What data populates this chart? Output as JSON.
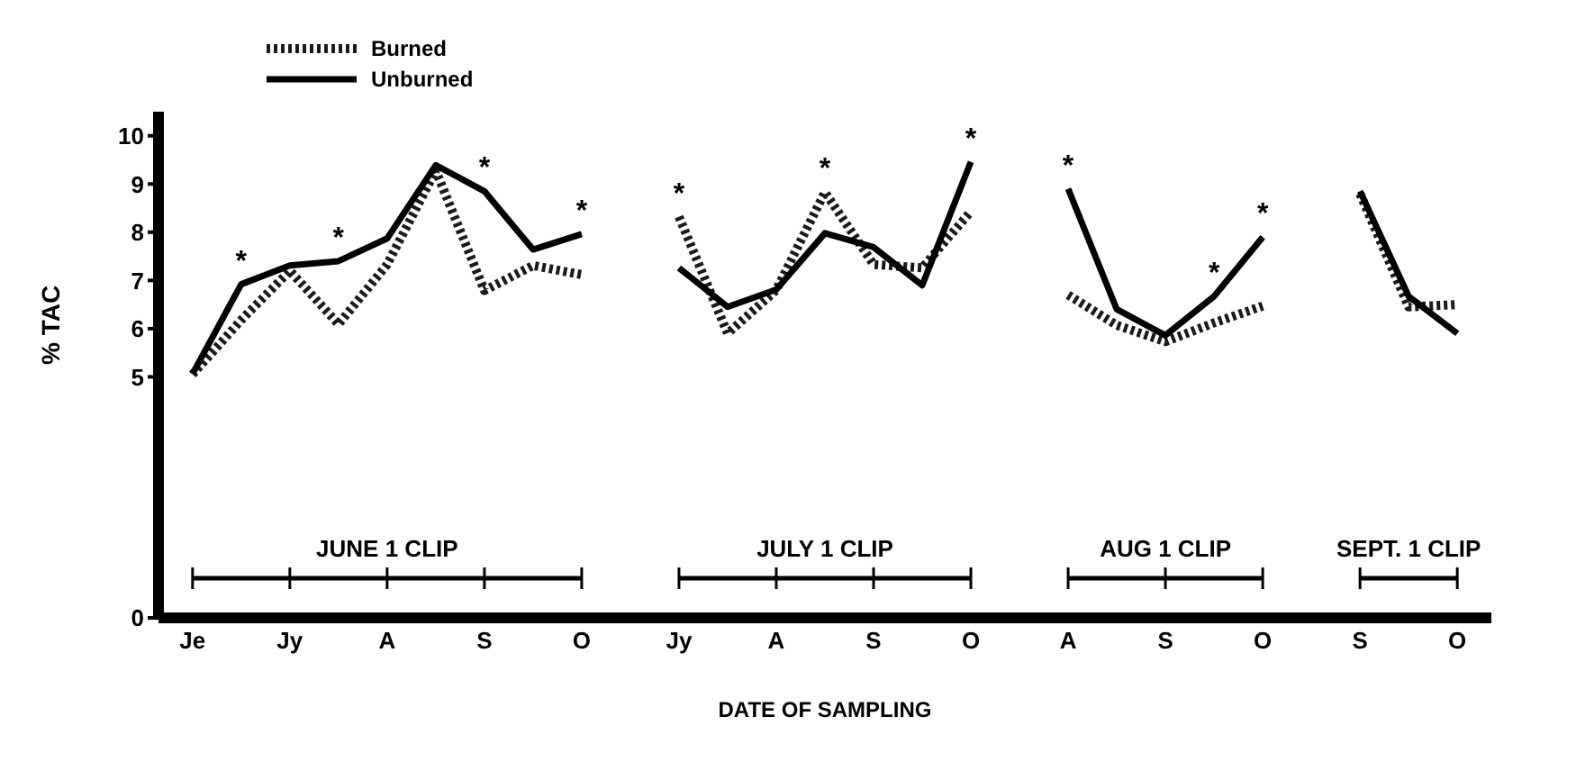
{
  "chart_data": {
    "type": "line",
    "xlabel": "DATE OF SAMPLING",
    "ylabel": "% TAC",
    "categories": [
      "Je",
      null,
      "Jy",
      null,
      "A",
      null,
      "S",
      null,
      "O",
      null,
      "Jy",
      null,
      "A",
      null,
      "S",
      null,
      "O",
      null,
      "A",
      null,
      "S",
      null,
      "O",
      null,
      "S",
      null,
      "O"
    ],
    "series": [
      {
        "name": "Burned",
        "color": "#1a1a1a",
        "line_style": "dotted",
        "values": [
          5.05,
          6.18,
          7.2,
          6.09,
          7.33,
          9.28,
          6.79,
          7.31,
          7.12,
          null,
          8.32,
          5.9,
          6.8,
          8.83,
          7.33,
          7.26,
          8.43,
          null,
          6.7,
          6.07,
          5.73,
          6.12,
          6.47,
          null,
          8.8,
          6.45,
          6.5
        ],
        "value_labels": [
          null,
          null,
          null,
          null,
          null,
          null,
          null,
          null,
          null,
          null,
          "*",
          null,
          null,
          "*",
          null,
          null,
          null,
          null,
          null,
          null,
          null,
          null,
          null,
          null,
          null,
          null,
          null
        ]
      },
      {
        "name": "Unburned",
        "color": "#000000",
        "line_style": "solid",
        "values": [
          5.06,
          6.92,
          7.31,
          7.4,
          7.87,
          9.39,
          8.85,
          7.64,
          7.96,
          null,
          7.26,
          6.45,
          6.81,
          7.98,
          7.69,
          6.9,
          9.46,
          null,
          8.9,
          6.4,
          5.86,
          6.67,
          7.9,
          null,
          8.85,
          6.67,
          5.9
        ],
        "value_labels": [
          null,
          "*",
          null,
          "*",
          null,
          null,
          "*",
          null,
          "*",
          null,
          null,
          null,
          null,
          null,
          null,
          null,
          "*",
          null,
          "*",
          null,
          null,
          "*",
          "*",
          null,
          null,
          null,
          null
        ]
      }
    ],
    "annotations": [
      "JUNE 1 CLIP",
      "JULY 1 CLIP",
      "AUG 1 CLIP",
      "SEPT. 1 CLIP"
    ],
    "ylim": [
      0,
      10.5
    ],
    "yticks": [
      0,
      5,
      6,
      7,
      8,
      9,
      10
    ],
    "grid": false,
    "legend": "top left",
    "marker": "none"
  }
}
